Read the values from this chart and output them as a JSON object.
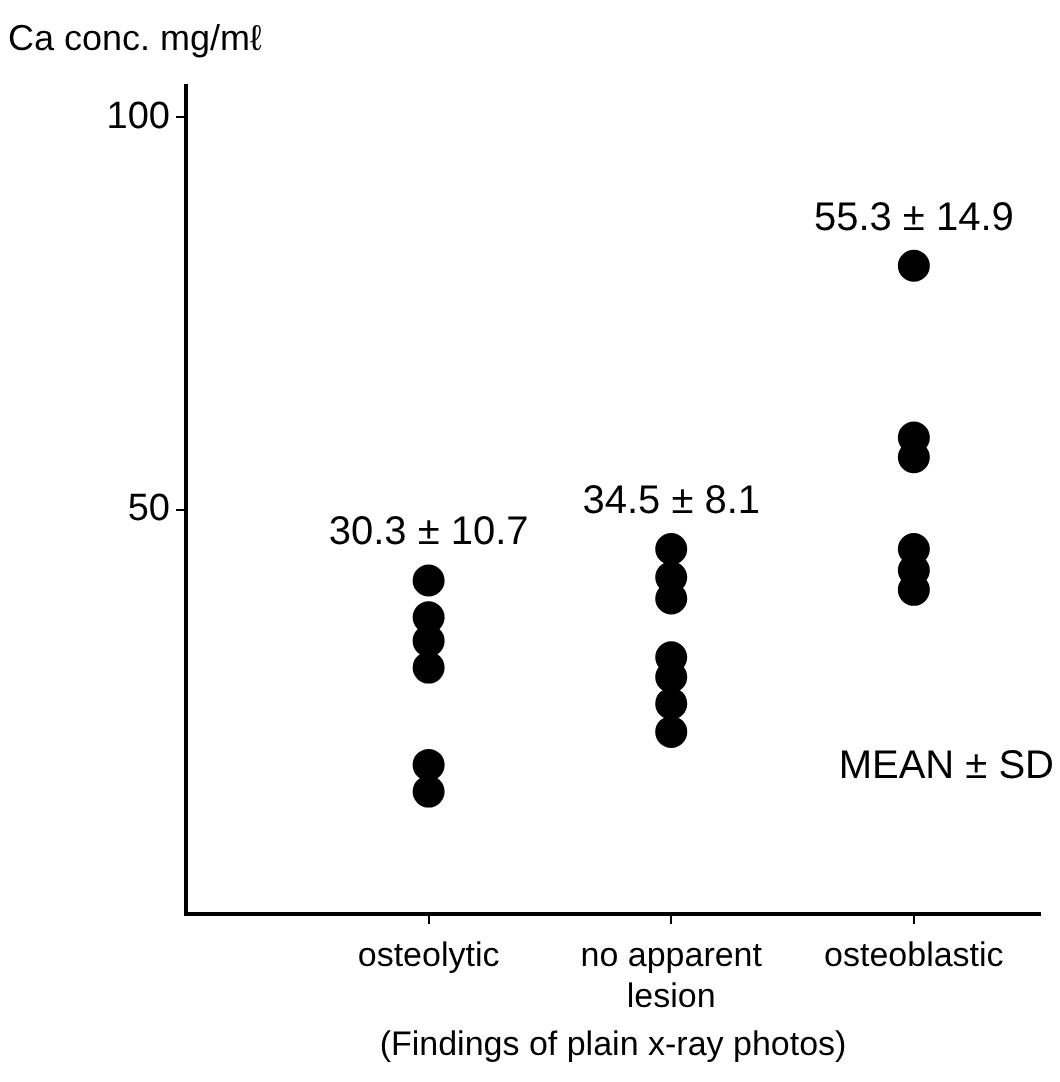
{
  "chart_data": {
    "type": "scatter",
    "ylabel": "Ca conc. mg/mℓ",
    "xlabel": "(Findings of plain x-ray photos)",
    "categories": [
      "osteolytic",
      "no apparent lesion",
      "osteoblastic"
    ],
    "series": [
      {
        "color": "#000000",
        "x": [
          "osteolytic",
          "osteolytic",
          "osteolytic",
          "osteolytic",
          "osteolytic",
          "osteolytic",
          "no apparent lesion",
          "no apparent lesion",
          "no apparent lesion",
          "no apparent lesion",
          "no apparent lesion",
          "no apparent lesion",
          "no apparent lesion",
          "osteoblastic",
          "osteoblastic",
          "osteoblastic",
          "osteoblastic",
          "osteoblastic",
          "osteoblastic"
        ],
        "values": [
          41.0,
          36.3,
          33.3,
          29.9,
          17.5,
          14.1,
          45.0,
          41.4,
          38.7,
          31.2,
          28.7,
          25.3,
          21.7,
          81.1,
          59.2,
          56.7,
          45.0,
          42.3,
          39.8
        ]
      }
    ],
    "ylim": [
      -1.5,
      104
    ],
    "yticks": [
      50,
      100
    ],
    "annotations": [
      "30.3 ± 10.7",
      "34.5 ± 8.1",
      "55.3 ± 14.9",
      "MEAN ± SD"
    ],
    "marker": "circle",
    "grid": false,
    "legend": false
  }
}
